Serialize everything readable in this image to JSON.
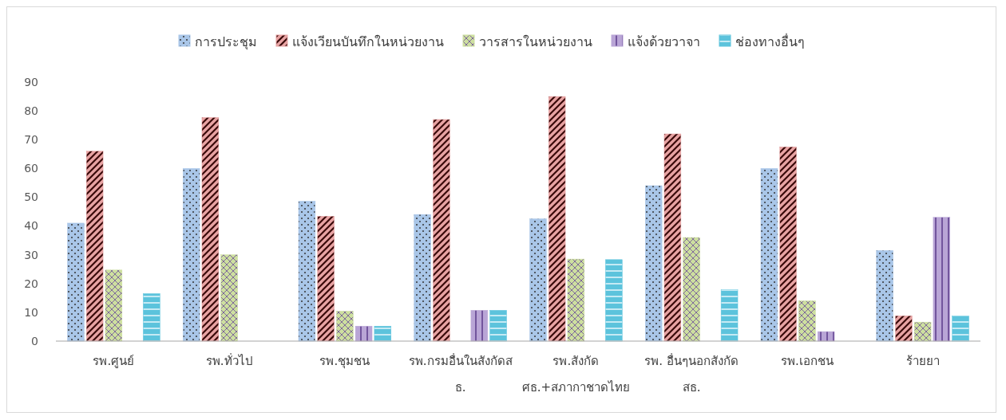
{
  "chart_data": {
    "type": "bar",
    "categories": [
      "รพ.ศูนย์",
      "รพ.ทั่วไป",
      "รพ.ชุมชน",
      "รพ.กรมอื่นในสังกัดสธ.",
      "รพ.สังกัด ศธ.+สภากาชาดไทย",
      "รพ. อื่นๆนอกสังกัด สธ.",
      "รพ.เอกชน",
      "ร้ายยา"
    ],
    "series": [
      {
        "name": "การประชุม",
        "color": "#a9c6e8",
        "values": [
          41,
          60,
          48.6,
          44,
          42.5,
          54,
          60,
          31.5
        ]
      },
      {
        "name": "แจ้งเวียนบันทึกในหน่วยงาน",
        "color": "#e8a3a3",
        "values": [
          66,
          77.7,
          43.4,
          77,
          85,
          72,
          67.5,
          8.8
        ]
      },
      {
        "name": "วารสารในหน่วยงาน",
        "color": "#cddf9f",
        "values": [
          24.7,
          30,
          10.4,
          0,
          28.5,
          36,
          14,
          6.6
        ]
      },
      {
        "name": "แจ้งด้วยวาจา",
        "color": "#b9a5d6",
        "values": [
          0,
          0,
          5.2,
          10.7,
          0,
          0,
          3.3,
          43
        ]
      },
      {
        "name": "ช่องทางอื่นๆ",
        "color": "#5cc3dc",
        "values": [
          16.5,
          0,
          5.2,
          10.7,
          28.3,
          17.8,
          0,
          8.8
        ]
      }
    ],
    "ylim": [
      0,
      90
    ],
    "yticks": [
      0,
      10,
      20,
      30,
      40,
      50,
      60,
      70,
      80,
      90
    ],
    "grid": false,
    "legend": "top"
  }
}
